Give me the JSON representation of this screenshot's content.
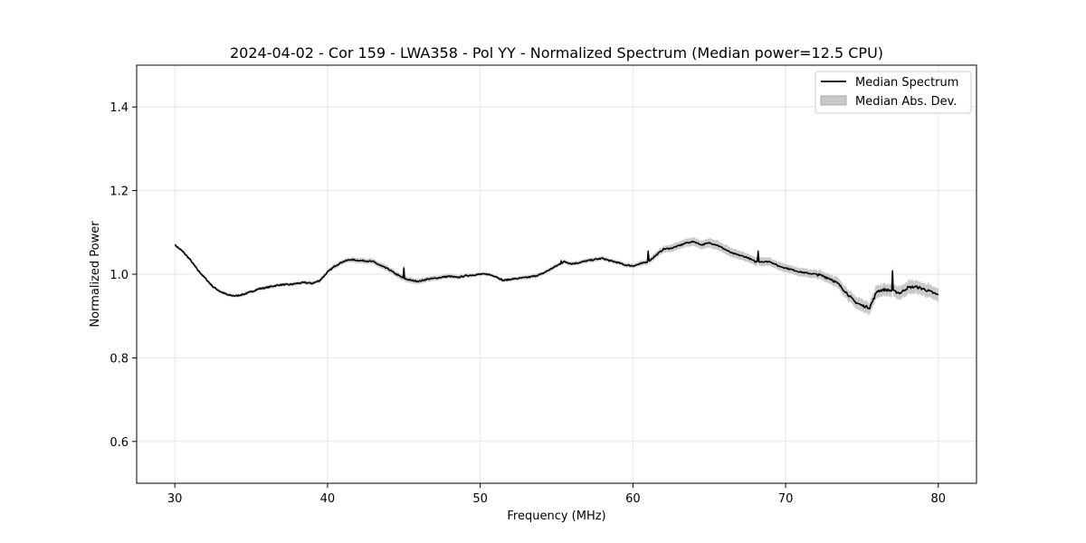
{
  "chart_data": {
    "type": "line",
    "title": "2024-04-02 - Cor 159 - LWA358 - Pol YY - Normalized Spectrum (Median power=12.5 CPU)",
    "xlabel": "Frequency (MHz)",
    "ylabel": "Normalized Power",
    "xlim": [
      27.5,
      82.5
    ],
    "ylim": [
      0.5,
      1.5
    ],
    "xticks": [
      30,
      40,
      50,
      60,
      70,
      80
    ],
    "xtick_labels": [
      "30",
      "40",
      "50",
      "60",
      "70",
      "80"
    ],
    "yticks": [
      0.6,
      0.8,
      1.0,
      1.2,
      1.4
    ],
    "ytick_labels": [
      "0.6",
      "0.8",
      "1.0",
      "1.2",
      "1.4"
    ],
    "grid": true,
    "legend": {
      "position": "top-right",
      "entries": [
        "Median Spectrum",
        "Median Abs. Dev."
      ]
    },
    "series": [
      {
        "name": "Median Spectrum",
        "color": "#000000",
        "x": [
          30,
          30.5,
          31,
          31.5,
          32,
          32.5,
          33,
          33.5,
          34,
          34.5,
          35,
          35.5,
          36,
          36.5,
          37,
          37.5,
          38,
          38.5,
          39,
          39.5,
          40,
          40.5,
          41,
          41.5,
          42,
          42.5,
          43,
          43.5,
          44,
          44.5,
          45,
          45.5,
          46,
          46.5,
          47,
          47.5,
          48,
          48.5,
          49,
          49.5,
          50,
          50.5,
          51,
          51.5,
          52,
          52.5,
          53,
          53.5,
          54,
          54.5,
          55,
          55.5,
          56,
          56.5,
          57,
          57.5,
          58,
          58.5,
          59,
          59.5,
          60,
          60.5,
          61,
          61.5,
          62,
          62.5,
          63,
          63.5,
          64,
          64.5,
          65,
          65.5,
          66,
          66.5,
          67,
          67.5,
          68,
          68.5,
          69,
          69.5,
          70,
          70.5,
          71,
          71.5,
          72,
          72.5,
          73,
          73.5,
          74,
          74.5,
          75,
          75.5,
          76,
          76.5,
          77,
          77.5,
          78,
          78.5,
          79,
          79.5,
          80
        ],
        "y": [
          1.07,
          1.055,
          1.035,
          1.01,
          0.99,
          0.97,
          0.958,
          0.95,
          0.948,
          0.952,
          0.958,
          0.965,
          0.968,
          0.972,
          0.975,
          0.975,
          0.978,
          0.98,
          0.978,
          0.985,
          1.005,
          1.02,
          1.03,
          1.035,
          1.033,
          1.032,
          1.03,
          1.02,
          1.012,
          1.0,
          0.99,
          0.985,
          0.983,
          0.988,
          0.99,
          0.993,
          0.995,
          0.992,
          0.996,
          0.998,
          1.0,
          1.0,
          0.995,
          0.985,
          0.988,
          0.99,
          0.992,
          0.995,
          1.0,
          1.01,
          1.02,
          1.03,
          1.025,
          1.028,
          1.032,
          1.035,
          1.038,
          1.032,
          1.028,
          1.022,
          1.02,
          1.025,
          1.03,
          1.045,
          1.06,
          1.062,
          1.068,
          1.075,
          1.078,
          1.07,
          1.075,
          1.07,
          1.06,
          1.05,
          1.045,
          1.04,
          1.03,
          1.03,
          1.03,
          1.02,
          1.015,
          1.01,
          1.005,
          1.002,
          1.0,
          0.995,
          0.988,
          0.975,
          0.955,
          0.935,
          0.925,
          0.92,
          0.96,
          0.963,
          0.96,
          0.955,
          0.968,
          0.97,
          0.965,
          0.958,
          0.95
        ],
        "spikes": [
          [
            45.0,
            1.015
          ],
          [
            55.3,
            1.032
          ],
          [
            61.0,
            1.055
          ],
          [
            68.2,
            1.055
          ],
          [
            77.0,
            1.008
          ]
        ]
      }
    ],
    "band": {
      "name": "Median Abs. Dev.",
      "color": "#c8c8c8",
      "x": [
        30,
        35,
        40,
        45,
        50,
        55,
        60,
        62,
        64,
        65,
        66,
        68,
        70,
        72,
        74,
        75,
        76,
        77,
        78,
        79,
        80
      ],
      "halfwidth": [
        0.004,
        0.004,
        0.005,
        0.007,
        0.004,
        0.005,
        0.005,
        0.008,
        0.01,
        0.011,
        0.011,
        0.01,
        0.01,
        0.01,
        0.013,
        0.015,
        0.015,
        0.015,
        0.016,
        0.016,
        0.016
      ]
    }
  }
}
